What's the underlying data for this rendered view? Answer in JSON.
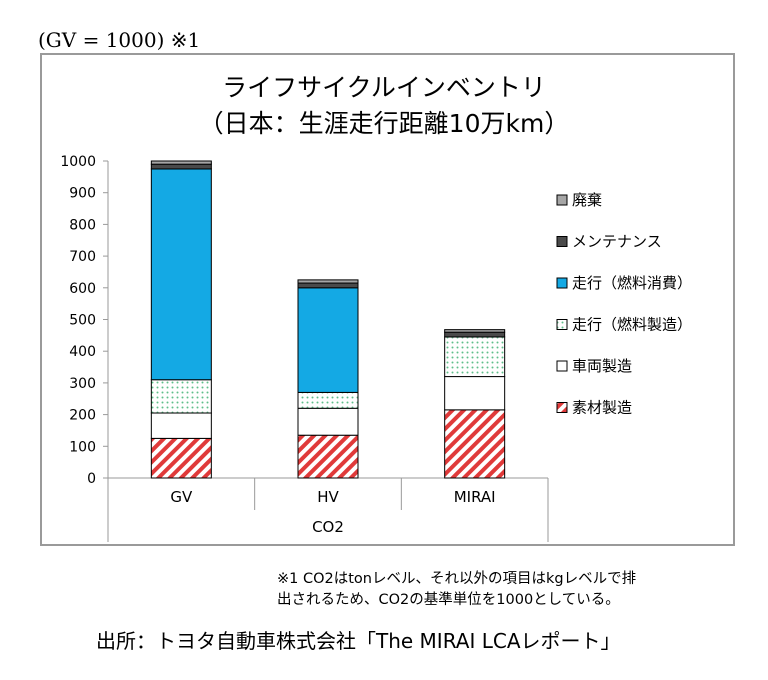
{
  "header_note": "(GV = 1000)  ※1",
  "chart_data": {
    "type": "bar",
    "stacked": true,
    "title": "ライフサイクルインベントリ",
    "subtitle": "（日本：生涯走行距離10万km）",
    "group_label": "CO2",
    "categories": [
      "GV",
      "HV",
      "MIRAI"
    ],
    "ylim": [
      0,
      1000
    ],
    "yticks": [
      0,
      100,
      200,
      300,
      400,
      500,
      600,
      700,
      800,
      900,
      1000
    ],
    "series": [
      {
        "name": "素材製造",
        "values": [
          125,
          135,
          215
        ],
        "color": "#e03a3a",
        "pattern": "hatch"
      },
      {
        "name": "車両製造",
        "values": [
          80,
          85,
          105
        ],
        "color": "#ffffff",
        "pattern": "solid"
      },
      {
        "name": "走行（燃料製造）",
        "values": [
          105,
          50,
          125
        ],
        "color": "#ffffff",
        "pattern": "dots"
      },
      {
        "name": "走行（燃料消費）",
        "values": [
          665,
          330,
          0
        ],
        "color": "#14a9e4",
        "pattern": "solid"
      },
      {
        "name": "メンテナンス",
        "values": [
          15,
          15,
          15
        ],
        "color": "#4a4a4a",
        "pattern": "solid"
      },
      {
        "name": "廃棄",
        "values": [
          10,
          10,
          8
        ],
        "color": "#a6a6a6",
        "pattern": "solid"
      }
    ],
    "legend_position": "right",
    "grid": false
  },
  "footnote_lines": [
    "※1 CO2はtonレベル、それ以外の項目はkgレベルで排",
    "出されるため、CO2の基準単位を1000としている。"
  ],
  "source": "出所：トヨタ自動車株式会社「The MIRAI  LCAレポート」"
}
